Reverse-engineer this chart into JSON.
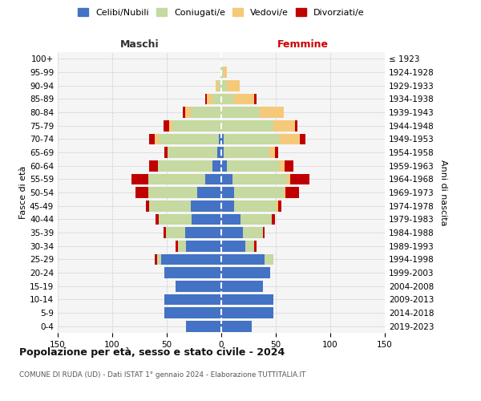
{
  "age_groups": [
    "0-4",
    "5-9",
    "10-14",
    "15-19",
    "20-24",
    "25-29",
    "30-34",
    "35-39",
    "40-44",
    "45-49",
    "50-54",
    "55-59",
    "60-64",
    "65-69",
    "70-74",
    "75-79",
    "80-84",
    "85-89",
    "90-94",
    "95-99",
    "100+"
  ],
  "birth_years": [
    "2019-2023",
    "2014-2018",
    "2009-2013",
    "2004-2008",
    "1999-2003",
    "1994-1998",
    "1989-1993",
    "1984-1988",
    "1979-1983",
    "1974-1978",
    "1969-1973",
    "1964-1968",
    "1959-1963",
    "1954-1958",
    "1949-1953",
    "1944-1948",
    "1939-1943",
    "1934-1938",
    "1929-1933",
    "1924-1928",
    "≤ 1923"
  ],
  "males": {
    "celibi": [
      32,
      52,
      52,
      42,
      52,
      55,
      32,
      33,
      27,
      28,
      22,
      15,
      8,
      4,
      2,
      0,
      0,
      0,
      0,
      0,
      0
    ],
    "coniugati": [
      0,
      0,
      0,
      0,
      0,
      4,
      8,
      18,
      30,
      38,
      45,
      52,
      50,
      45,
      55,
      45,
      28,
      8,
      3,
      1,
      0
    ],
    "vedovi": [
      0,
      0,
      0,
      0,
      0,
      0,
      0,
      0,
      0,
      0,
      0,
      0,
      0,
      0,
      4,
      3,
      5,
      5,
      2,
      0,
      0
    ],
    "divorziati": [
      0,
      0,
      0,
      0,
      0,
      2,
      2,
      2,
      3,
      3,
      12,
      15,
      8,
      3,
      5,
      5,
      2,
      2,
      0,
      0,
      0
    ]
  },
  "females": {
    "nubili": [
      28,
      48,
      48,
      38,
      45,
      40,
      22,
      20,
      18,
      12,
      12,
      10,
      5,
      2,
      2,
      0,
      0,
      0,
      0,
      0,
      0
    ],
    "coniugate": [
      0,
      0,
      0,
      0,
      0,
      8,
      8,
      18,
      28,
      38,
      45,
      50,
      48,
      42,
      52,
      48,
      35,
      12,
      5,
      2,
      0
    ],
    "vedove": [
      0,
      0,
      0,
      0,
      0,
      0,
      0,
      0,
      0,
      2,
      2,
      3,
      5,
      5,
      18,
      20,
      22,
      18,
      12,
      3,
      0
    ],
    "divorziate": [
      0,
      0,
      0,
      0,
      0,
      0,
      2,
      2,
      3,
      3,
      12,
      18,
      8,
      3,
      5,
      2,
      0,
      2,
      0,
      0,
      0
    ]
  },
  "colors": {
    "celibi": "#4472c4",
    "coniugati": "#c5d9a0",
    "vedovi": "#f5c97a",
    "divorziati": "#c00000"
  },
  "title": "Popolazione per età, sesso e stato civile - 2024",
  "subtitle": "COMUNE DI RUDA (UD) - Dati ISTAT 1° gennaio 2024 - Elaborazione TUTTITALIA.IT",
  "label_maschi": "Maschi",
  "label_femmine": "Femmine",
  "ylabel_left": "Fasce di età",
  "ylabel_right": "Anni di nascita",
  "xlim": 150,
  "legend_labels": [
    "Celibi/Nubili",
    "Coniugati/e",
    "Vedovi/e",
    "Divorziati/e"
  ],
  "background_color": "#ffffff",
  "plot_bg": "#f5f5f5",
  "grid_color": "#cccccc"
}
